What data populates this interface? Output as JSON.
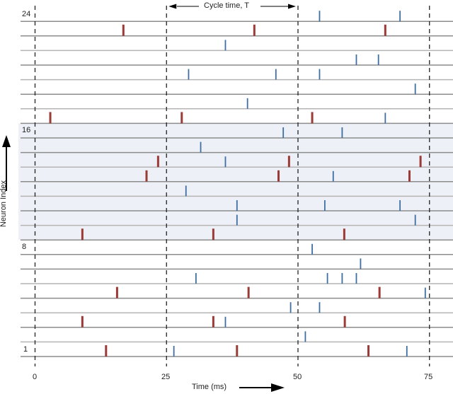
{
  "chart_data": {
    "type": "raster",
    "title": "",
    "annotation": "Cycle time, T",
    "xlabel": "Time (ms)",
    "ylabel": "Neuron Index",
    "x_ticks": [
      "0",
      "25",
      "50",
      "75"
    ],
    "x_tick_values": [
      0,
      25,
      50,
      75
    ],
    "y_tick_labels": [
      {
        "row": 24,
        "label": "24"
      },
      {
        "row": 16,
        "label": "16"
      },
      {
        "row": 8,
        "label": "8"
      },
      {
        "row": 1,
        "label": "1"
      }
    ],
    "xlim": [
      -3,
      79
    ],
    "n_rows": 24,
    "highlight_rows": [
      9,
      16
    ],
    "cycle_boundaries": [
      0,
      25,
      50,
      75
    ],
    "colors": {
      "red_spike": "#9b3a36",
      "blue_spike": "#3f6ea3",
      "band": "#edf0f6",
      "row_line": "#9a9a9a",
      "dash": "#222222"
    },
    "series": [
      {
        "name": "red",
        "spikes": [
          {
            "row": 23,
            "t": [
              16.8,
              41.7,
              66.6
            ]
          },
          {
            "row": 17,
            "t": [
              2.9,
              27.9,
              52.7
            ]
          },
          {
            "row": 14,
            "t": [
              23.4,
              48.3,
              73.3
            ]
          },
          {
            "row": 13,
            "t": [
              21.2,
              46.3,
              71.2
            ]
          },
          {
            "row": 9,
            "t": [
              9.0,
              33.9,
              58.8
            ]
          },
          {
            "row": 5,
            "t": [
              15.6,
              40.6,
              65.5
            ]
          },
          {
            "row": 3,
            "t": [
              9.0,
              33.9,
              58.9
            ]
          },
          {
            "row": 1,
            "t": [
              13.5,
              38.4,
              63.4
            ]
          }
        ]
      },
      {
        "name": "blue",
        "spikes": [
          {
            "row": 24,
            "t": [
              54.1,
              69.4
            ]
          },
          {
            "row": 22,
            "t": [
              36.2
            ]
          },
          {
            "row": 21,
            "t": [
              61.1,
              65.3
            ]
          },
          {
            "row": 20,
            "t": [
              29.2,
              45.8,
              54.1
            ]
          },
          {
            "row": 19,
            "t": [
              72.3
            ]
          },
          {
            "row": 18,
            "t": [
              40.4
            ]
          },
          {
            "row": 17,
            "t": [
              66.6
            ]
          },
          {
            "row": 16,
            "t": [
              47.2,
              58.4
            ]
          },
          {
            "row": 15,
            "t": [
              31.5
            ]
          },
          {
            "row": 14,
            "t": [
              36.2
            ]
          },
          {
            "row": 13,
            "t": [
              56.7
            ]
          },
          {
            "row": 12,
            "t": [
              28.7
            ]
          },
          {
            "row": 11,
            "t": [
              38.4,
              55.1,
              69.4
            ]
          },
          {
            "row": 10,
            "t": [
              38.4,
              72.3
            ]
          },
          {
            "row": 8,
            "t": [
              52.7
            ]
          },
          {
            "row": 7,
            "t": [
              61.9
            ]
          },
          {
            "row": 6,
            "t": [
              30.6,
              55.6,
              58.4,
              61.1
            ]
          },
          {
            "row": 5,
            "t": [
              74.2
            ]
          },
          {
            "row": 4,
            "t": [
              48.6,
              54.1
            ]
          },
          {
            "row": 3,
            "t": [
              36.2
            ]
          },
          {
            "row": 2,
            "t": [
              51.4
            ]
          },
          {
            "row": 1,
            "t": [
              26.4,
              70.7
            ]
          }
        ]
      }
    ]
  }
}
